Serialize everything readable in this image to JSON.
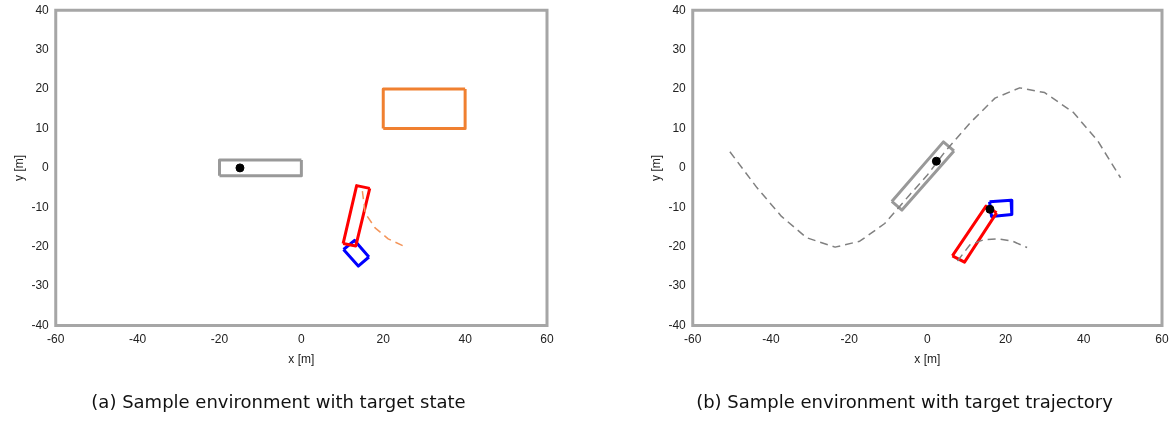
{
  "chart_data": [
    {
      "type": "line",
      "title": "(a) Sample environment with target state",
      "xlabel": "x [m]",
      "ylabel": "y [m]",
      "xlim": [
        -60,
        60
      ],
      "xticks": [
        -60,
        -40,
        -20,
        0,
        20,
        40,
        60
      ],
      "ylim": [
        -40,
        40
      ],
      "yticks": [
        -40,
        -30,
        -20,
        -10,
        0,
        10,
        20,
        30,
        40
      ],
      "legend": false,
      "series": [
        {
          "color": "#999999",
          "x": [
            -20,
            -20,
            0
          ],
          "values": [
            -2,
            2,
            2
          ]
        },
        {
          "color": "#999999",
          "x": [
            -20,
            0,
            0
          ],
          "values": [
            -2,
            -2,
            2
          ]
        },
        {
          "color": "#f08030",
          "x": [
            20,
            20,
            40
          ],
          "values": [
            10,
            20,
            20
          ]
        },
        {
          "color": "#f08030",
          "x": [
            20,
            40,
            40
          ],
          "values": [
            10,
            10,
            20
          ]
        },
        {
          "color": "#f4955a",
          "line_style": "dashed",
          "x": [
            14.9,
            15.6,
            18,
            21.2,
            24.9
          ],
          "values": [
            -5.9,
            -11.5,
            -15.2,
            -18,
            -19.8
          ]
        },
        {
          "color": "#ff0000",
          "x": [
            10.2,
            13.5,
            16.7
          ],
          "values": [
            -19.2,
            -4.5,
            -5.2
          ]
        },
        {
          "color": "#ff0000",
          "x": [
            10.2,
            13.3,
            16.7
          ],
          "values": [
            -19.2,
            -19.8,
            -5.2
          ]
        },
        {
          "color": "#0000ff",
          "x": [
            10.3,
            13,
            16.5
          ],
          "values": [
            -20.7,
            -18.4,
            -22.6
          ]
        },
        {
          "color": "#0000ff",
          "x": [
            10.3,
            13.9,
            16.5
          ],
          "values": [
            -20.7,
            -24.9,
            -22.6
          ]
        },
        {
          "type": "scatter",
          "marker": "circle",
          "color": "#000000",
          "x": [
            -15
          ],
          "values": [
            0
          ]
        }
      ]
    },
    {
      "type": "line",
      "title": "(b) Sample environment with target trajectory",
      "xlabel": "x [m]",
      "ylabel": "y [m]",
      "xlim": [
        -60,
        60
      ],
      "xticks": [
        -60,
        -40,
        -20,
        0,
        20,
        40,
        60
      ],
      "ylim": [
        -40,
        40
      ],
      "yticks": [
        -40,
        -30,
        -20,
        -10,
        0,
        10,
        20,
        30,
        40
      ],
      "legend": false,
      "series": [
        {
          "color": "#808080",
          "line_style": "dashed",
          "x": [
            -50.5,
            -43.6,
            -37.3,
            -30.9,
            -23.6,
            -17.3,
            -10.9,
            -4.5,
            0,
            4.5,
            10.9,
            17.3,
            23.6,
            30,
            37.3,
            43.6,
            49.4
          ],
          "values": [
            4.1,
            -5,
            -12.3,
            -17.7,
            -20.1,
            -18.6,
            -14.1,
            -6.8,
            -1.8,
            4.1,
            11.4,
            17.7,
            20.3,
            19.1,
            14.1,
            6.8,
            -2.5
          ]
        },
        {
          "color": "#808080",
          "line_style": "dashed",
          "x": [
            7.7,
            10.9,
            14.5,
            18.2,
            21.8,
            25.5
          ],
          "values": [
            -23.6,
            -19.5,
            -18.2,
            -18,
            -18.6,
            -20.2
          ]
        },
        {
          "color": "#999999",
          "x": [
            -9.1,
            4.1,
            6.8
          ],
          "values": [
            -8.5,
            6.6,
            4.3
          ]
        },
        {
          "color": "#999999",
          "x": [
            -9.1,
            -6.5,
            6.8
          ],
          "values": [
            -8.5,
            -10.7,
            4.3
          ]
        },
        {
          "color": "#ff0000",
          "x": [
            6.4,
            15,
            17.7
          ],
          "values": [
            -22.3,
            -9.7,
            -11.4
          ]
        },
        {
          "color": "#ff0000",
          "x": [
            6.4,
            9.5,
            17.7
          ],
          "values": [
            -22.3,
            -23.9,
            -11.4
          ]
        },
        {
          "color": "#0000ff",
          "x": [
            15.9,
            21.4,
            21.6
          ],
          "values": [
            -8.6,
            -8.2,
            -11.8
          ]
        },
        {
          "color": "#0000ff",
          "x": [
            15.9,
            16.4,
            21.6
          ],
          "values": [
            -8.6,
            -12.3,
            -11.8
          ]
        },
        {
          "type": "scatter",
          "marker": "circle",
          "color": "#000000",
          "x": [
            2.3,
            16
          ],
          "values": [
            1.7,
            -10.5
          ]
        }
      ]
    }
  ]
}
